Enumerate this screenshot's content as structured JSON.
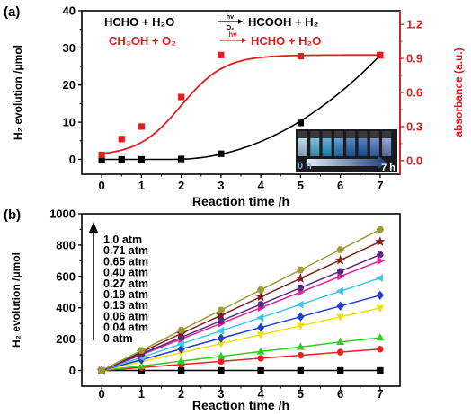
{
  "chart_data": [
    {
      "panel_label": "(a)",
      "type": "line",
      "xlabel": "Reaction time /h",
      "ylabel": "H₂ evolution /μmol",
      "y2label": "absorbance (a.u.)",
      "xlim": [
        -0.5,
        7.5
      ],
      "ylim": [
        -4,
        40
      ],
      "y2lim": [
        -0.12,
        1.32
      ],
      "x_ticks": [
        "0",
        "1",
        "2",
        "3",
        "4",
        "5",
        "6",
        "7"
      ],
      "y_ticks": [
        "0",
        "10",
        "20",
        "30",
        "40"
      ],
      "y2_ticks": [
        "0.0",
        "0.3",
        "0.6",
        "0.9",
        "1.2"
      ],
      "colors": {
        "black": "#000000",
        "red": "#e01e1e"
      },
      "reactions": {
        "line1_left": "HCHO + H₂O",
        "line1_arrow_top": "hv",
        "line1_arrow_bottom": "O₂",
        "line1_right": "HCOOH + H₂",
        "line2_left": "CH₃OH + O₂",
        "line2_arrow_top": "hv",
        "line2_right": "HCHO + H₂O"
      },
      "series": [
        {
          "axis": "left",
          "color": "#000000",
          "marker": "square",
          "x": [
            0,
            0.5,
            1,
            2,
            3,
            5,
            7
          ],
          "y": [
            0,
            0,
            0,
            0.1,
            1.5,
            9.8,
            28
          ]
        },
        {
          "axis": "right",
          "color": "#e01e1e",
          "marker": "square",
          "x": [
            0,
            0.5,
            1,
            2,
            3,
            5,
            7
          ],
          "y": [
            0.05,
            0.19,
            0.3,
            0.56,
            0.93,
            0.92,
            0.93
          ]
        }
      ],
      "inset": {
        "start_label": "0 h",
        "end_label": "7 h"
      }
    },
    {
      "panel_label": "(b)",
      "type": "line",
      "xlabel": "Reaction time /h",
      "ylabel": "H₂ evolution /μmol",
      "xlim": [
        -0.5,
        7.5
      ],
      "ylim": [
        -100,
        1000
      ],
      "x_ticks": [
        "0",
        "1",
        "2",
        "3",
        "4",
        "5",
        "6",
        "7"
      ],
      "y_ticks": [
        "0",
        "200",
        "400",
        "600",
        "800",
        "1000"
      ],
      "x": [
        0,
        1,
        2,
        3,
        4,
        5,
        6,
        7
      ],
      "legend": [
        "1.0 atm",
        "0.71 atm",
        "0.65 atm",
        "0.40 atm",
        "0.27 atm",
        "0.19 atm",
        "0.13 atm",
        "0.06 atm",
        "0.04 atm",
        "0 atm"
      ],
      "series": [
        {
          "name": "1.0 atm",
          "color": "#9b9b32",
          "marker": "hexagon",
          "values": [
            0,
            128,
            257,
            385,
            514,
            642,
            771,
            899
          ]
        },
        {
          "name": "0.71 atm",
          "color": "#7f1d1d",
          "marker": "star",
          "values": [
            0,
            117,
            235,
            352,
            470,
            587,
            704,
            822
          ]
        },
        {
          "name": "0.65 atm",
          "color": "#5b2a86",
          "marker": "circle",
          "values": [
            0,
            106,
            211,
            317,
            422,
            528,
            633,
            739
          ]
        },
        {
          "name": "0.40 atm",
          "color": "#e0219a",
          "marker": "triangle-right",
          "values": [
            0,
            100,
            200,
            300,
            400,
            500,
            600,
            700
          ]
        },
        {
          "name": "0.27 atm",
          "color": "#3cc8e6",
          "marker": "triangle-left",
          "values": [
            0,
            84,
            169,
            253,
            337,
            421,
            506,
            590
          ]
        },
        {
          "name": "0.19 atm",
          "color": "#1f3fd6",
          "marker": "diamond",
          "values": [
            0,
            69,
            137,
            206,
            274,
            343,
            411,
            480
          ]
        },
        {
          "name": "0.13 atm",
          "color": "#f0e000",
          "marker": "triangle-down",
          "values": [
            0,
            57,
            114,
            171,
            228,
            285,
            342,
            399
          ]
        },
        {
          "name": "0.06 atm",
          "color": "#33cc22",
          "marker": "triangle-up",
          "values": [
            0,
            29,
            60,
            91,
            121,
            150,
            182,
            209
          ]
        },
        {
          "name": "0.04 atm",
          "color": "#e52222",
          "marker": "circle",
          "values": [
            0,
            19,
            39,
            58,
            78,
            97,
            117,
            136
          ]
        },
        {
          "name": "0 atm",
          "color": "#000000",
          "marker": "square",
          "values": [
            0,
            0,
            0,
            0,
            0,
            0,
            0,
            0
          ]
        }
      ]
    }
  ]
}
